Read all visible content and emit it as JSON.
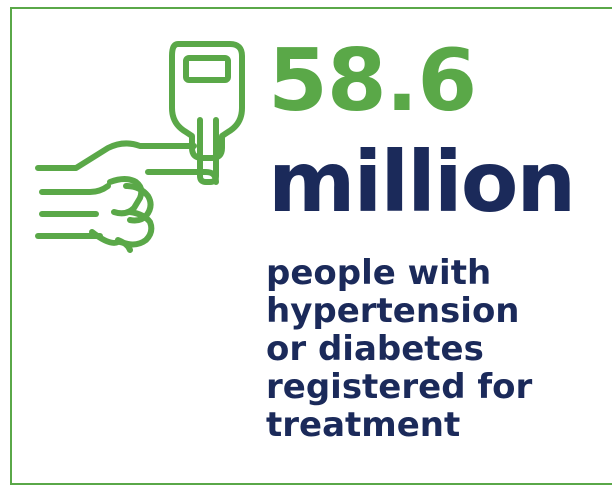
{
  "stat": {
    "value": "58.6",
    "unit": "million",
    "caption_lines": [
      "people with",
      "hypertension",
      "or diabetes",
      "registered for",
      "treatment"
    ]
  },
  "icon": "glucometer-hand-icon",
  "colors": {
    "accent_green": "#5aa848",
    "navy": "#1b2a5a",
    "background": "#ffffff"
  }
}
